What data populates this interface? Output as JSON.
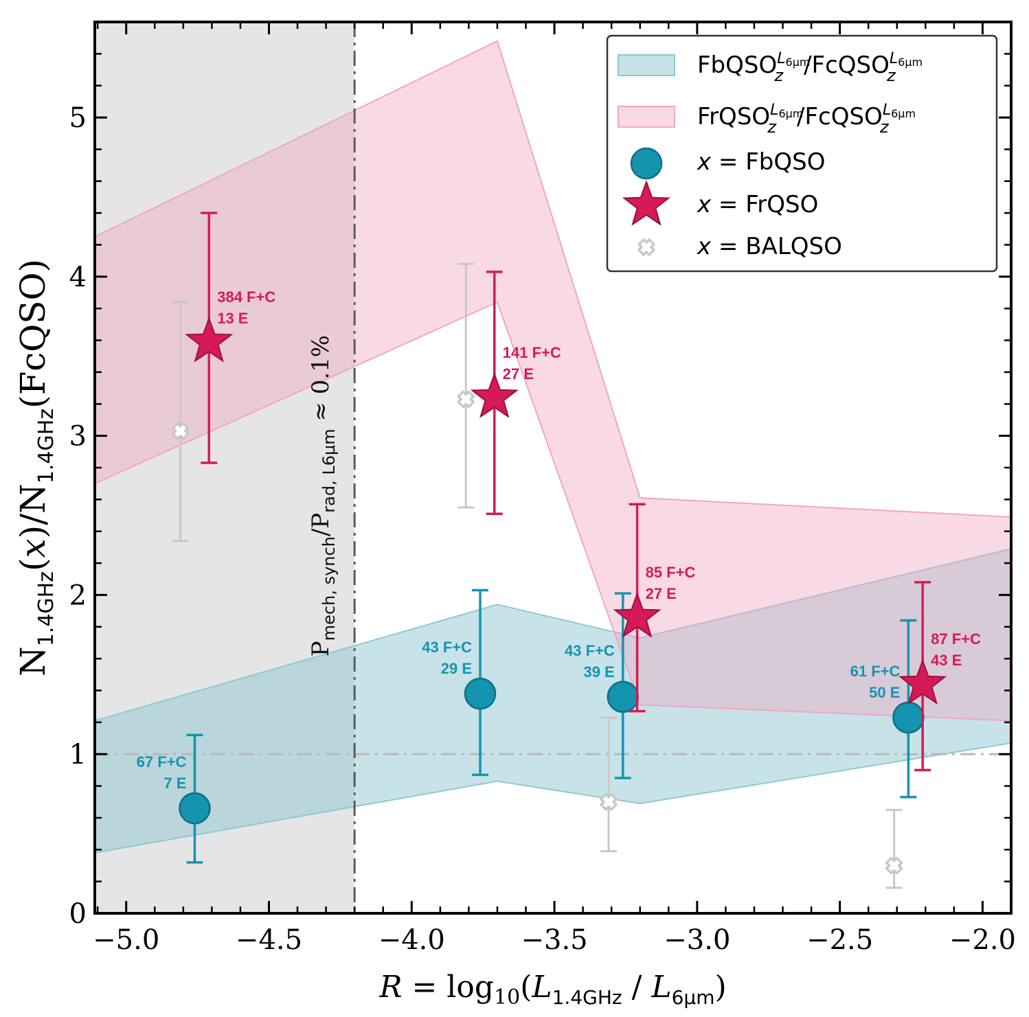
{
  "chart_data": {
    "type": "scatter",
    "xlabel": "R = log10(L1.4GHz / L6μm)",
    "ylabel": "N1.4GHz(x)/N1.4GHz(FcQSO)",
    "xlim": [
      -5.11,
      -1.9
    ],
    "ylim": [
      0,
      5.6
    ],
    "xticks": [
      "−5.0",
      "−4.5",
      "−4.0",
      "−3.5",
      "−3.0",
      "−2.5",
      "−2.0"
    ],
    "xtick_values": [
      -5.0,
      -4.5,
      -4.0,
      -3.5,
      -3.0,
      -2.5,
      -2.0
    ],
    "yticks": [
      "0",
      "1",
      "2",
      "3",
      "4",
      "5"
    ],
    "ytick_values": [
      0,
      1,
      2,
      3,
      4,
      5
    ],
    "grid": false,
    "legend_position": "top-right",
    "shaded_region": {
      "x_from": -5.11,
      "x_to": -4.2,
      "color": "#e5e5e5"
    },
    "vertical_line": {
      "x": -4.2,
      "label": "Pmech, synch/Prad, L6μm ≈ 0.1%"
    },
    "reference_line": {
      "y": 1.0
    },
    "bands": [
      {
        "name": "FbQSO_z^L6μm / FcQSO_z^L6μm",
        "color": "#8fc8d4",
        "x": [
          -5.11,
          -3.7,
          -3.2,
          -1.9
        ],
        "lower": [
          0.38,
          0.83,
          0.69,
          1.07
        ],
        "upper": [
          1.21,
          1.94,
          1.73,
          2.29
        ]
      },
      {
        "name": "FrQSO_z^L6μm / FcQSO_z^L6μm",
        "color": "#f0a7bf",
        "x": [
          -5.11,
          -3.7,
          -3.2,
          -1.9
        ],
        "lower": [
          2.7,
          3.84,
          1.31,
          1.21
        ],
        "upper": [
          4.25,
          5.48,
          2.61,
          2.49
        ]
      }
    ],
    "series": [
      {
        "name": "x = FbQSO",
        "marker": "circle",
        "color": "#1594af",
        "points": [
          {
            "x": -4.76,
            "y": 0.66,
            "ylo": 0.32,
            "yhi": 1.12,
            "n_fc": "67 F+C",
            "n_e": "7 E"
          },
          {
            "x": -3.76,
            "y": 1.38,
            "ylo": 0.87,
            "yhi": 2.03,
            "n_fc": "43 F+C",
            "n_e": "29 E"
          },
          {
            "x": -3.26,
            "y": 1.36,
            "ylo": 0.85,
            "yhi": 2.01,
            "n_fc": "43 F+C",
            "n_e": "39 E"
          },
          {
            "x": -2.26,
            "y": 1.23,
            "ylo": 0.73,
            "yhi": 1.84,
            "n_fc": "61 F+C",
            "n_e": "50 E"
          }
        ]
      },
      {
        "name": "x = FrQSO",
        "marker": "star",
        "color": "#d61a56",
        "points": [
          {
            "x": -4.71,
            "y": 3.59,
            "ylo": 2.83,
            "yhi": 4.4,
            "n_fc": "384 F+C",
            "n_e": "13 E"
          },
          {
            "x": -3.71,
            "y": 3.24,
            "ylo": 2.51,
            "yhi": 4.03,
            "n_fc": "141 F+C",
            "n_e": "27 E"
          },
          {
            "x": -3.21,
            "y": 1.86,
            "ylo": 1.27,
            "yhi": 2.57,
            "n_fc": "85 F+C",
            "n_e": "27 E"
          },
          {
            "x": -2.21,
            "y": 1.44,
            "ylo": 0.9,
            "yhi": 2.08,
            "n_fc": "87 F+C",
            "n_e": "43 E"
          }
        ]
      },
      {
        "name": "x = BALQSO",
        "marker": "cross",
        "color": "#c8c8c8",
        "points": [
          {
            "x": -4.81,
            "y": 3.03,
            "ylo": 2.34,
            "yhi": 3.84
          },
          {
            "x": -3.81,
            "y": 3.23,
            "ylo": 2.55,
            "yhi": 4.08
          },
          {
            "x": -3.31,
            "y": 0.7,
            "ylo": 0.39,
            "yhi": 1.23
          },
          {
            "x": -2.31,
            "y": 0.3,
            "ylo": 0.16,
            "yhi": 0.65
          }
        ]
      }
    ]
  }
}
